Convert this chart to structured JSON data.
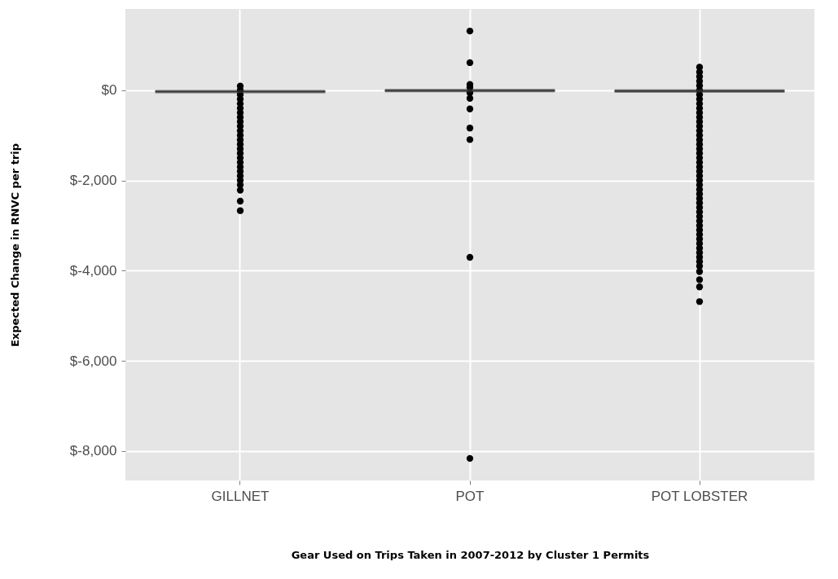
{
  "chart_data": {
    "type": "box",
    "xlabel": "Gear Used on Trips Taken in 2007-2012 by Cluster 1 Permits",
    "ylabel": "Expected Change in RNVC per trip",
    "categories": [
      "GILLNET",
      "POT",
      "POT LOBSTER"
    ],
    "boxes": [
      {
        "low": -30,
        "q1": -30,
        "median": -30,
        "q3": -30,
        "high": -30,
        "outliers": [
          90,
          0,
          -100,
          -200,
          -300,
          -400,
          -500,
          -600,
          -700,
          -800,
          -900,
          -1000,
          -1100,
          -1200,
          -1300,
          -1400,
          -1500,
          -1600,
          -1700,
          -1800,
          -1900,
          -2000,
          -2100,
          -2215,
          -2460,
          -2670
        ]
      },
      {
        "low": -10,
        "q1": -10,
        "median": -10,
        "q3": -10,
        "high": -10,
        "outliers": [
          1310,
          610,
          125,
          60,
          -60,
          -180,
          -415,
          -840,
          -1095,
          -3705,
          -8160
        ]
      },
      {
        "low": -20,
        "q1": -20,
        "median": -20,
        "q3": -20,
        "high": -20,
        "outliers": [
          510,
          400,
          300,
          200,
          100,
          0,
          -100,
          -200,
          -300,
          -400,
          -500,
          -600,
          -700,
          -800,
          -900,
          -1000,
          -1100,
          -1200,
          -1300,
          -1400,
          -1500,
          -1600,
          -1700,
          -1800,
          -1900,
          -2000,
          -2100,
          -2200,
          -2300,
          -2400,
          -2500,
          -2600,
          -2700,
          -2800,
          -2900,
          -3000,
          -3100,
          -3200,
          -3300,
          -3400,
          -3500,
          -3600,
          -3700,
          -3800,
          -3900,
          -4020,
          -4200,
          -4360,
          -4685
        ]
      }
    ],
    "color": "#333333",
    "ylim": [
      -8650,
      1800
    ],
    "yticks": [
      {
        "value": -8000,
        "label": "$-8,000"
      },
      {
        "value": -6000,
        "label": "$-6,000"
      },
      {
        "value": -4000,
        "label": "$-4,000"
      },
      {
        "value": -2000,
        "label": "$-2,000"
      },
      {
        "value": 0,
        "label": "$0"
      }
    ],
    "grid": true
  }
}
